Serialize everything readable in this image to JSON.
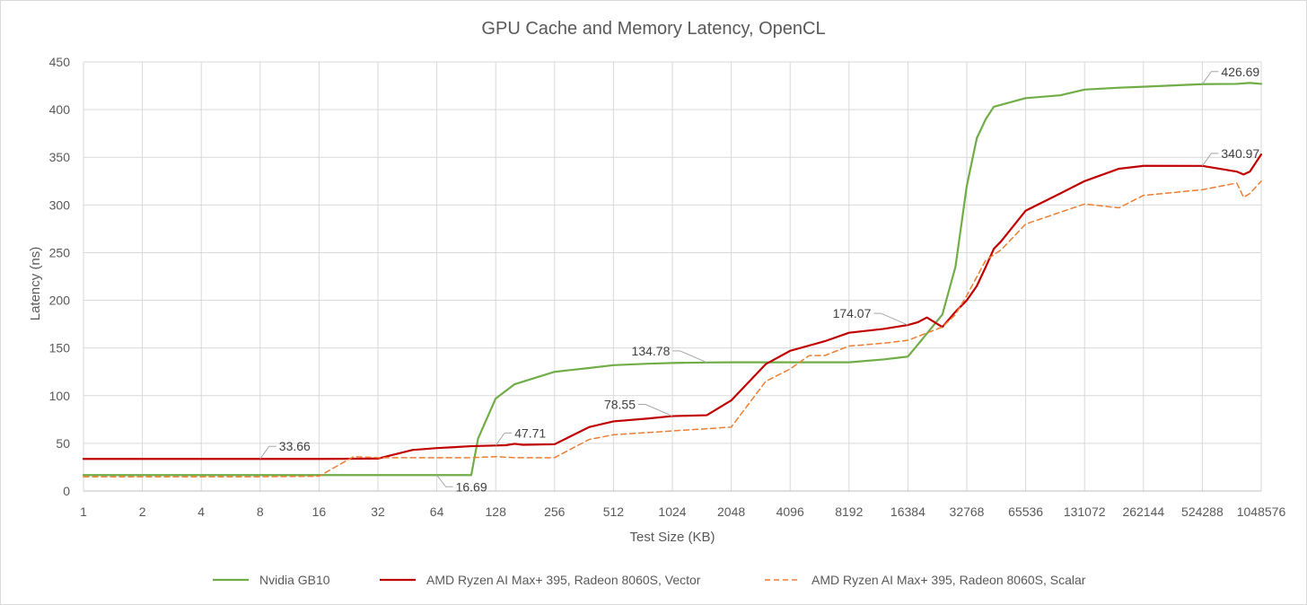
{
  "chart_data": {
    "type": "line",
    "title": "GPU Cache and Memory Latency, OpenCL",
    "xlabel": "Test Size (KB)",
    "ylabel": "Latency (ns)",
    "x_scale": "log2",
    "xlim": [
      1,
      1048576
    ],
    "ylim": [
      0,
      450
    ],
    "y_ticks": [
      0,
      50,
      100,
      150,
      200,
      250,
      300,
      350,
      400,
      450
    ],
    "x_ticks": [
      1,
      2,
      4,
      8,
      16,
      32,
      64,
      128,
      256,
      512,
      1024,
      2048,
      4096,
      8192,
      16384,
      32768,
      65536,
      131072,
      262144,
      524288,
      1048576
    ],
    "x_tick_labels": [
      "1",
      "2",
      "4",
      "8",
      "16",
      "32",
      "64",
      "128",
      "256",
      "512",
      "1024",
      "2048",
      "4096",
      "8192",
      "16384",
      "32768",
      "65536",
      "131072",
      "262144",
      "524288",
      "1048576"
    ],
    "grid": true,
    "legend_position": "bottom",
    "series": [
      {
        "name": "Nvidia GB10",
        "color": "#70ad47",
        "style": "solid",
        "points": [
          [
            1,
            16.69
          ],
          [
            4,
            16.69
          ],
          [
            16,
            16.69
          ],
          [
            64,
            16.69
          ],
          [
            96,
            16.69
          ],
          [
            104,
            55
          ],
          [
            128,
            97
          ],
          [
            160,
            112
          ],
          [
            192,
            117
          ],
          [
            256,
            125
          ],
          [
            384,
            129
          ],
          [
            512,
            132
          ],
          [
            768,
            133.5
          ],
          [
            1024,
            134.3
          ],
          [
            1536,
            134.78
          ],
          [
            2048,
            135
          ],
          [
            4096,
            135
          ],
          [
            8192,
            135
          ],
          [
            12288,
            138
          ],
          [
            16384,
            141
          ],
          [
            20480,
            165
          ],
          [
            24576,
            185
          ],
          [
            28672,
            235
          ],
          [
            32768,
            320
          ],
          [
            36864,
            370
          ],
          [
            40960,
            390
          ],
          [
            45056,
            403
          ],
          [
            65536,
            412
          ],
          [
            98304,
            415
          ],
          [
            131072,
            421
          ],
          [
            196608,
            423
          ],
          [
            262144,
            424
          ],
          [
            524288,
            426.69
          ],
          [
            786432,
            427
          ],
          [
            917504,
            428
          ],
          [
            1048576,
            427
          ]
        ]
      },
      {
        "name": "AMD Ryzen AI Max+ 395, Radeon 8060S, Vector",
        "color": "#c00000",
        "style": "solid",
        "points": [
          [
            1,
            33.66
          ],
          [
            8,
            33.66
          ],
          [
            16,
            33.66
          ],
          [
            32,
            34
          ],
          [
            48,
            43
          ],
          [
            64,
            45
          ],
          [
            96,
            47
          ],
          [
            128,
            47.71
          ],
          [
            144,
            48
          ],
          [
            160,
            49.5
          ],
          [
            176,
            48.5
          ],
          [
            256,
            49
          ],
          [
            384,
            67
          ],
          [
            512,
            73
          ],
          [
            768,
            76
          ],
          [
            1024,
            78.55
          ],
          [
            1536,
            79.5
          ],
          [
            2048,
            95
          ],
          [
            3072,
            133
          ],
          [
            4096,
            147
          ],
          [
            6144,
            157
          ],
          [
            8192,
            166
          ],
          [
            12288,
            170
          ],
          [
            16384,
            174.07
          ],
          [
            18432,
            177
          ],
          [
            20480,
            182
          ],
          [
            24576,
            172
          ],
          [
            28672,
            188
          ],
          [
            32768,
            200
          ],
          [
            36864,
            215
          ],
          [
            40960,
            235
          ],
          [
            45056,
            254
          ],
          [
            49152,
            262
          ],
          [
            65536,
            294
          ],
          [
            98304,
            312
          ],
          [
            131072,
            325
          ],
          [
            196608,
            338
          ],
          [
            262144,
            341
          ],
          [
            524288,
            340.97
          ],
          [
            786432,
            335
          ],
          [
            851968,
            332
          ],
          [
            917504,
            335
          ],
          [
            1048576,
            353
          ]
        ]
      },
      {
        "name": "AMD Ryzen AI Max+ 395, Radeon 8060S, Scalar",
        "color": "#ed7d31",
        "style": "dashed",
        "points": [
          [
            1,
            15
          ],
          [
            4,
            15
          ],
          [
            8,
            15
          ],
          [
            16,
            15.5
          ],
          [
            24,
            36
          ],
          [
            32,
            35
          ],
          [
            48,
            35
          ],
          [
            64,
            35
          ],
          [
            96,
            35
          ],
          [
            128,
            36
          ],
          [
            160,
            35
          ],
          [
            256,
            35
          ],
          [
            384,
            54
          ],
          [
            512,
            59
          ],
          [
            1024,
            63
          ],
          [
            2048,
            67
          ],
          [
            3072,
            115
          ],
          [
            4096,
            128
          ],
          [
            5120,
            142
          ],
          [
            6144,
            142
          ],
          [
            8192,
            152
          ],
          [
            12288,
            155
          ],
          [
            16384,
            158
          ],
          [
            24576,
            172
          ],
          [
            28672,
            185
          ],
          [
            32768,
            205
          ],
          [
            40960,
            242
          ],
          [
            49152,
            253
          ],
          [
            65536,
            280
          ],
          [
            131072,
            301
          ],
          [
            196608,
            297
          ],
          [
            262144,
            310
          ],
          [
            524288,
            316
          ],
          [
            786432,
            323
          ],
          [
            851968,
            308
          ],
          [
            917504,
            312
          ],
          [
            1048576,
            325
          ]
        ]
      }
    ],
    "annotations": [
      {
        "text": "33.66",
        "series": 1,
        "x": 8,
        "y": 33.66,
        "side": "right"
      },
      {
        "text": "16.69",
        "series": 0,
        "x": 64,
        "y": 16.69,
        "side": "right-below"
      },
      {
        "text": "47.71",
        "series": 1,
        "x": 128,
        "y": 47.71,
        "side": "right"
      },
      {
        "text": "78.55",
        "series": 1,
        "x": 1024,
        "y": 78.55,
        "side": "left"
      },
      {
        "text": "134.78",
        "series": 0,
        "x": 1536,
        "y": 134.78,
        "side": "left"
      },
      {
        "text": "174.07",
        "series": 1,
        "x": 16384,
        "y": 174.07,
        "side": "left"
      },
      {
        "text": "426.69",
        "series": 0,
        "x": 524288,
        "y": 426.69,
        "side": "right"
      },
      {
        "text": "340.97",
        "series": 1,
        "x": 524288,
        "y": 340.97,
        "side": "right"
      }
    ]
  }
}
